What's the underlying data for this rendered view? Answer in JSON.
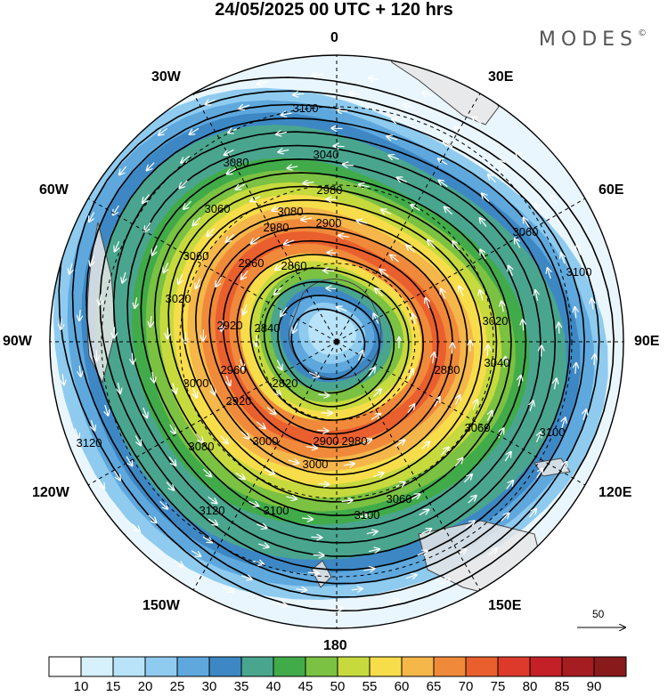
{
  "header": {
    "title": "24/05/2025  00 UTC  + 120 hrs",
    "brand": "MODES",
    "brand_mark": "©"
  },
  "map": {
    "projection": "south polar stereographic",
    "longitude_labels": {
      "n": "0",
      "ne1": "30E",
      "ne2": "60E",
      "e": "90E",
      "se1": "120E",
      "se2": "150E",
      "s": "180",
      "sw1": "150W",
      "sw2": "120W",
      "w": "90W",
      "nw1": "60W",
      "nw2": "30W"
    },
    "contour_labels": [
      "3100",
      "3080",
      "3040",
      "2980",
      "3060",
      "3080",
      "2980",
      "2900",
      "3060",
      "2960",
      "3100",
      "3020",
      "2860",
      "3060",
      "3020",
      "2840",
      "2920",
      "3040",
      "2820",
      "2960",
      "2880",
      "3000",
      "2920",
      "2900",
      "2980",
      "3000",
      "3060",
      "3080",
      "3000",
      "3100",
      "3060",
      "3120",
      "3100",
      "3120",
      "3100"
    ],
    "wind_scale_value": "50"
  },
  "colorbar": {
    "ticks": [
      "10",
      "15",
      "20",
      "25",
      "30",
      "35",
      "40",
      "45",
      "50",
      "55",
      "60",
      "65",
      "70",
      "75",
      "80",
      "85",
      "90"
    ],
    "colors": [
      "#ffffff",
      "#d6f0fc",
      "#b9e3f8",
      "#8fcbef",
      "#5ea8dd",
      "#3d88c4",
      "#4aa58e",
      "#41ab4a",
      "#7bc142",
      "#c6da3e",
      "#f7dd4a",
      "#f5b64a",
      "#f08a3a",
      "#ea5f2e",
      "#dd3a2c",
      "#c42027",
      "#a51c21",
      "#891a1c"
    ]
  }
}
